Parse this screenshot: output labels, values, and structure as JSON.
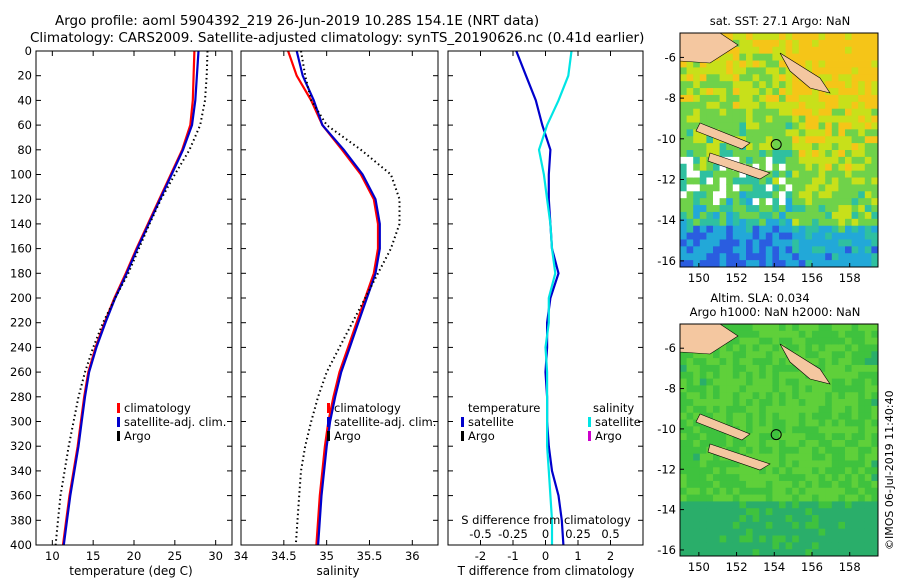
{
  "title": {
    "line1": "Argo profile: aoml 5904392_219 26-Jun-2019 10.28S 154.1E (NRT data)",
    "line2": "Climatology: CARS2009. Satellite-adjusted climatology: synTS_20190626.nc (0.41d earlier)"
  },
  "credit": "©IMOS 06-Jul-2019 11:40:40",
  "colors": {
    "climatology": "#ff0000",
    "satellite": "#0000cc",
    "argo": "#000000",
    "sat_salinity": "#00e5e5",
    "argo_salinity": "#cc00cc",
    "land": "#f4c7a0"
  },
  "chart_data": [
    {
      "id": "temperature",
      "type": "line",
      "xlabel": "temperature (deg C)",
      "xlim": [
        8,
        32
      ],
      "xticks": [
        10,
        15,
        20,
        25,
        30
      ],
      "ylim": [
        0,
        400
      ],
      "yticks": [
        0,
        20,
        40,
        60,
        80,
        100,
        120,
        140,
        160,
        180,
        200,
        220,
        240,
        260,
        280,
        300,
        320,
        340,
        360,
        380,
        400
      ],
      "legend": [
        "climatology",
        "satellite-adj. clim.",
        "Argo"
      ],
      "series": [
        {
          "name": "climatology",
          "style": "solid",
          "color": "#ff0000",
          "depth": [
            0,
            20,
            40,
            60,
            80,
            100,
            120,
            140,
            160,
            180,
            200,
            220,
            240,
            260,
            280,
            300,
            320,
            340,
            360,
            380,
            400
          ],
          "value": [
            27.4,
            27.3,
            27.2,
            26.9,
            25.9,
            24.5,
            23.1,
            21.7,
            20.3,
            19.0,
            17.6,
            16.4,
            15.3,
            14.4,
            13.9,
            13.5,
            13.1,
            12.6,
            12.1,
            11.7,
            11.3
          ]
        },
        {
          "name": "satellite-adj. clim.",
          "style": "solid",
          "color": "#0000cc",
          "depth": [
            0,
            20,
            40,
            60,
            80,
            100,
            120,
            140,
            160,
            180,
            200,
            220,
            240,
            260,
            280,
            300,
            320,
            340,
            360,
            380,
            400
          ],
          "value": [
            27.9,
            27.7,
            27.5,
            27.1,
            26.0,
            24.6,
            23.2,
            21.8,
            20.4,
            19.1,
            17.7,
            16.5,
            15.4,
            14.5,
            14.0,
            13.6,
            13.2,
            12.7,
            12.2,
            11.8,
            11.4
          ]
        },
        {
          "name": "Argo",
          "style": "dotted",
          "color": "#000000",
          "depth": [
            0,
            20,
            40,
            60,
            80,
            100,
            120,
            140,
            160,
            180,
            200,
            220,
            240,
            260,
            280,
            300,
            320,
            340,
            360,
            380,
            400
          ],
          "value": [
            29.0,
            28.9,
            28.7,
            28.1,
            26.8,
            25.0,
            23.3,
            21.9,
            20.6,
            19.3,
            17.7,
            16.2,
            15.0,
            14.0,
            13.2,
            12.6,
            12.0,
            11.5,
            11.0,
            10.7,
            10.4
          ]
        }
      ]
    },
    {
      "id": "salinity",
      "type": "line",
      "xlabel": "salinity",
      "xlim": [
        34,
        36.3
      ],
      "xticks": [
        34,
        34.5,
        35,
        35.5,
        36
      ],
      "ylim": [
        0,
        400
      ],
      "yticks": [
        0,
        20,
        40,
        60,
        80,
        100,
        120,
        140,
        160,
        180,
        200,
        220,
        240,
        260,
        280,
        300,
        320,
        340,
        360,
        380,
        400
      ],
      "legend": [
        "climatology",
        "satellite-adj. clim.",
        "Argo"
      ],
      "series": [
        {
          "name": "climatology",
          "style": "solid",
          "color": "#ff0000",
          "depth": [
            0,
            20,
            40,
            60,
            80,
            100,
            120,
            140,
            160,
            180,
            200,
            220,
            240,
            260,
            280,
            300,
            320,
            340,
            360,
            380,
            400
          ],
          "value": [
            34.55,
            34.65,
            34.82,
            34.95,
            35.18,
            35.4,
            35.55,
            35.6,
            35.6,
            35.55,
            35.45,
            35.35,
            35.25,
            35.15,
            35.08,
            35.02,
            34.98,
            34.95,
            34.92,
            34.9,
            34.88
          ]
        },
        {
          "name": "satellite-adj. clim.",
          "style": "solid",
          "color": "#0000cc",
          "depth": [
            0,
            20,
            40,
            60,
            80,
            100,
            120,
            140,
            160,
            180,
            200,
            220,
            240,
            260,
            280,
            300,
            320,
            340,
            360,
            380,
            400
          ],
          "value": [
            34.65,
            34.72,
            34.85,
            34.95,
            35.2,
            35.42,
            35.57,
            35.62,
            35.62,
            35.57,
            35.47,
            35.37,
            35.27,
            35.17,
            35.1,
            35.04,
            35.0,
            34.97,
            34.94,
            34.92,
            34.9
          ]
        },
        {
          "name": "Argo",
          "style": "dotted",
          "color": "#000000",
          "depth": [
            0,
            20,
            40,
            60,
            80,
            100,
            120,
            140,
            160,
            180,
            200,
            220,
            240,
            260,
            280,
            300,
            320,
            340,
            360,
            380,
            400
          ],
          "value": [
            34.7,
            34.75,
            34.82,
            35.0,
            35.4,
            35.75,
            35.85,
            35.85,
            35.75,
            35.6,
            35.45,
            35.3,
            35.15,
            35.0,
            34.9,
            34.82,
            34.75,
            34.7,
            34.68,
            34.66,
            34.64
          ]
        }
      ]
    },
    {
      "id": "difference",
      "type": "line",
      "xlabel": "T difference from climatology",
      "xlim": [
        -3,
        3
      ],
      "xticks": [
        -2,
        -1,
        0,
        1,
        2
      ],
      "top_axis_label": "S difference from climatology",
      "top_ticks": [
        -0.5,
        -0.25,
        0,
        0.25,
        0.5
      ],
      "ylim": [
        0,
        400
      ],
      "yticks": [
        0,
        20,
        40,
        60,
        80,
        100,
        120,
        140,
        160,
        180,
        200,
        220,
        240,
        260,
        280,
        300,
        320,
        340,
        360,
        380,
        400
      ],
      "legend_left_title": "temperature",
      "legend_right_title": "salinity",
      "legend_left": [
        "satellite",
        "Argo"
      ],
      "legend_right": [
        "satellite",
        "Argo"
      ],
      "series": [
        {
          "name": "temperature satellite",
          "style": "solid",
          "color": "#0000cc",
          "depth": [
            0,
            20,
            40,
            60,
            80,
            100,
            120,
            140,
            160,
            180,
            200,
            220,
            240,
            260,
            280,
            300,
            320,
            340,
            360,
            380,
            400
          ],
          "value": [
            -0.9,
            -0.6,
            -0.3,
            -0.1,
            0.15,
            0.1,
            0.1,
            0.15,
            0.2,
            0.4,
            0.15,
            0.05,
            0.05,
            0.0,
            0.05,
            0.05,
            0.1,
            0.2,
            0.4,
            0.5,
            0.55
          ]
        },
        {
          "name": "salinity satellite",
          "style": "solid",
          "color": "#00e5e5",
          "depth": [
            0,
            20,
            40,
            60,
            80,
            100,
            120,
            140,
            160,
            180,
            200,
            220,
            240,
            260,
            280,
            300,
            320,
            340,
            360,
            380,
            400
          ],
          "value": [
            0.8,
            0.7,
            0.4,
            0.05,
            -0.2,
            -0.05,
            0.05,
            0.15,
            0.2,
            0.3,
            0.1,
            0.1,
            0.0,
            0.05,
            0.05,
            0.05,
            0.05,
            0.1,
            0.15,
            0.2,
            0.2
          ]
        }
      ]
    },
    {
      "id": "sst_map",
      "type": "heatmap",
      "title": "sat. SST: 27.1 Argo: NaN",
      "xlim": [
        149,
        159.5
      ],
      "ylim": [
        -16.3,
        -4.8
      ],
      "xticks": [
        150,
        152,
        154,
        156,
        158
      ],
      "yticks": [
        -6,
        -8,
        -10,
        -12,
        -14,
        -16
      ],
      "argo_position": [
        154.1,
        -10.28
      ]
    },
    {
      "id": "sla_map",
      "type": "heatmap",
      "title_line1": "Altim. SLA: 0.034",
      "title_line2": "Argo h1000: NaN h2000: NaN",
      "xlim": [
        149,
        159.5
      ],
      "ylim": [
        -16.3,
        -4.8
      ],
      "xticks": [
        150,
        152,
        154,
        156,
        158
      ],
      "yticks": [
        -6,
        -8,
        -10,
        -12,
        -14,
        -16
      ],
      "argo_position": [
        154.1,
        -10.28
      ]
    }
  ]
}
